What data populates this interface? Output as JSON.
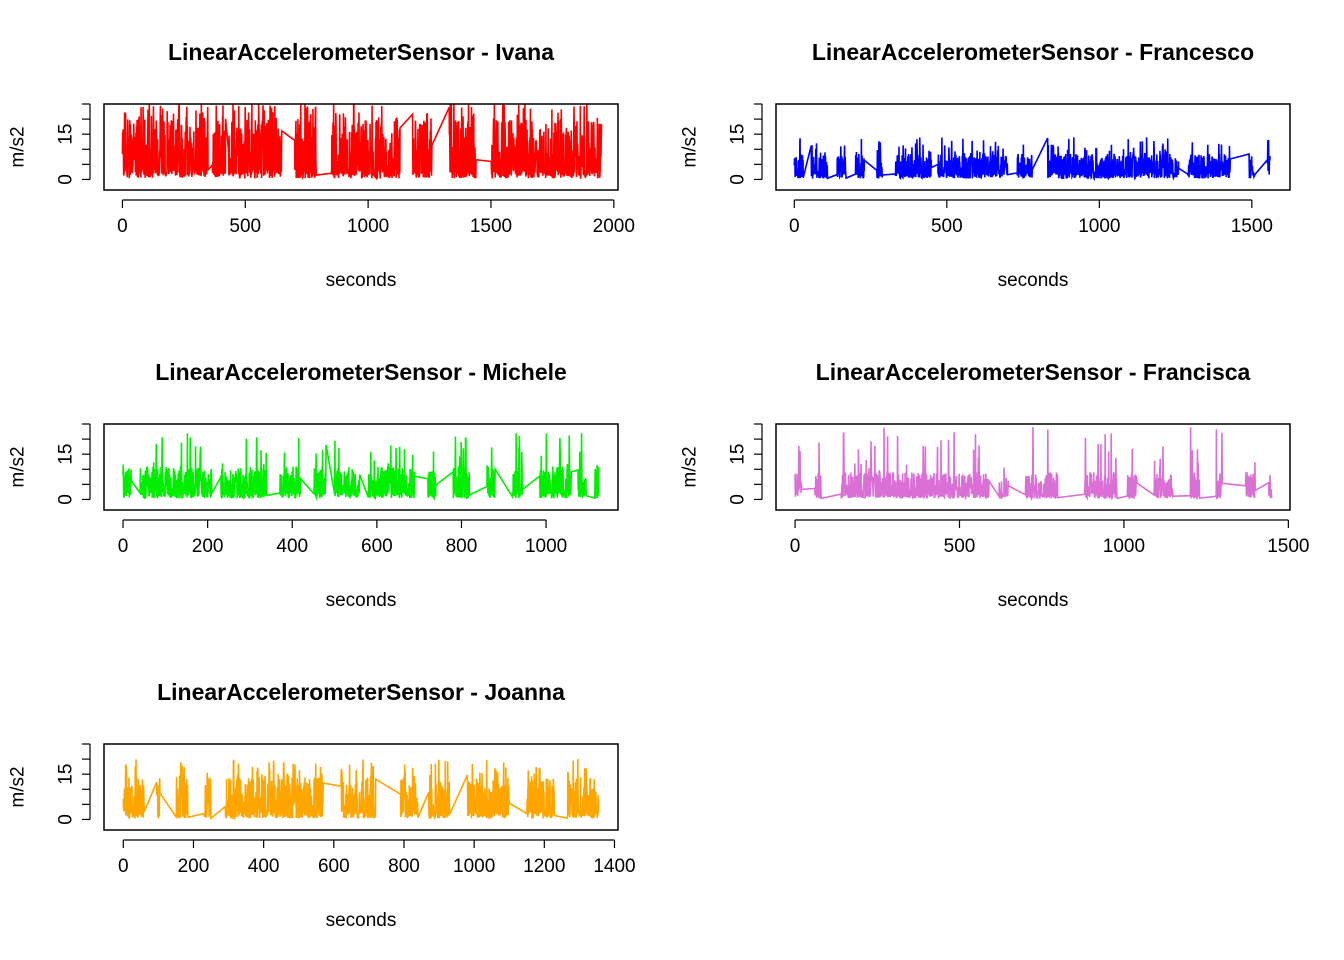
{
  "chart_data": [
    {
      "type": "line",
      "title": "LinearAccelerometerSensor - Ivana",
      "xlabel": "seconds",
      "ylabel": "m/s2",
      "color": "#ff0000",
      "x_ticks": [
        0,
        500,
        1000,
        1500,
        2000
      ],
      "x_tick_labels": [
        "0",
        "500",
        "1000",
        "1500",
        "2000"
      ],
      "y_ticks": [
        0,
        5,
        10,
        15,
        20,
        25
      ],
      "y_tick_labels": [
        "0",
        "",
        "",
        "15",
        "",
        ""
      ],
      "xlim": [
        -75,
        2017
      ],
      "ylim": [
        -3.5,
        25
      ],
      "x_range": [
        0,
        1950
      ],
      "y_base": 4,
      "y_peak": 20,
      "y_max": 26,
      "gaps": [
        [
          350,
          365
        ],
        [
          420,
          430
        ],
        [
          650,
          700
        ],
        [
          790,
          850
        ],
        [
          1130,
          1180
        ],
        [
          1260,
          1330
        ],
        [
          1440,
          1500
        ]
      ],
      "seed": 11
    },
    {
      "type": "line",
      "title": "LinearAccelerometerSensor - Francesco",
      "xlabel": "seconds",
      "ylabel": "m/s2",
      "color": "#0000ff",
      "x_ticks": [
        0,
        500,
        1000,
        1500
      ],
      "x_tick_labels": [
        "0",
        "500",
        "1000",
        "1500"
      ],
      "y_ticks": [
        0,
        5,
        10,
        15,
        20,
        25
      ],
      "y_tick_labels": [
        "0",
        "",
        "",
        "15",
        "",
        ""
      ],
      "xlim": [
        -60,
        1625
      ],
      "ylim": [
        -3.5,
        25
      ],
      "x_range": [
        0,
        1560
      ],
      "y_base": 2.5,
      "y_peak": 8.5,
      "y_max": 14,
      "gaps": [
        [
          30,
          55
        ],
        [
          110,
          140
        ],
        [
          170,
          200
        ],
        [
          230,
          270
        ],
        [
          290,
          330
        ],
        [
          450,
          470
        ],
        [
          700,
          730
        ],
        [
          780,
          830
        ],
        [
          1260,
          1290
        ],
        [
          1430,
          1490
        ],
        [
          1510,
          1550
        ]
      ],
      "seed": 23
    },
    {
      "type": "line",
      "title": "LinearAccelerometerSensor - Michele",
      "xlabel": "seconds",
      "ylabel": "m/s2",
      "color": "#00ee00",
      "x_ticks": [
        0,
        200,
        400,
        600,
        800,
        1000
      ],
      "x_tick_labels": [
        "0",
        "200",
        "400",
        "600",
        "800",
        "1000"
      ],
      "y_ticks": [
        0,
        5,
        10,
        15,
        20,
        25
      ],
      "y_tick_labels": [
        "0",
        "",
        "",
        "15",
        "",
        ""
      ],
      "xlim": [
        -45,
        1170
      ],
      "ylim": [
        -3.5,
        25
      ],
      "x_range": [
        0,
        1125
      ],
      "y_base": 3,
      "y_peak": 11,
      "y_max": 22,
      "gaps": [
        [
          20,
          40
        ],
        [
          210,
          230
        ],
        [
          340,
          370
        ],
        [
          420,
          450
        ],
        [
          480,
          500
        ],
        [
          560,
          580
        ],
        [
          690,
          720
        ],
        [
          740,
          780
        ],
        [
          820,
          860
        ],
        [
          880,
          920
        ],
        [
          945,
          985
        ],
        [
          1060,
          1075
        ],
        [
          1095,
          1115
        ]
      ],
      "seed": 37
    },
    {
      "type": "line",
      "title": "LinearAccelerometerSensor - Francisca",
      "xlabel": "seconds",
      "ylabel": "m/s2",
      "color": "#da70d6",
      "x_ticks": [
        0,
        500,
        1000,
        1500
      ],
      "x_tick_labels": [
        "0",
        "500",
        "1000",
        "1500"
      ],
      "y_ticks": [
        0,
        5,
        10,
        15,
        20,
        25
      ],
      "y_tick_labels": [
        "0",
        "",
        "",
        "15",
        "",
        ""
      ],
      "xlim": [
        -58,
        1505
      ],
      "ylim": [
        -3.5,
        25
      ],
      "x_range": [
        0,
        1450
      ],
      "y_base": 2,
      "y_peak": 9,
      "y_max": 24,
      "gaps": [
        [
          20,
          60
        ],
        [
          80,
          140
        ],
        [
          590,
          620
        ],
        [
          650,
          700
        ],
        [
          800,
          880
        ],
        [
          980,
          1010
        ],
        [
          1040,
          1090
        ],
        [
          1150,
          1200
        ],
        [
          1230,
          1280
        ],
        [
          1300,
          1370
        ],
        [
          1400,
          1440
        ]
      ],
      "seed": 51
    },
    {
      "type": "line",
      "title": "LinearAccelerometerSensor - Joanna",
      "xlabel": "seconds",
      "ylabel": "m/s2",
      "color": "#ffa500",
      "x_ticks": [
        0,
        200,
        400,
        600,
        800,
        1000,
        1200,
        1400
      ],
      "x_tick_labels": [
        "0",
        "200",
        "400",
        "600",
        "800",
        "1000",
        "1200",
        "1400"
      ],
      "y_ticks": [
        0,
        5,
        10,
        15,
        20,
        25
      ],
      "y_tick_labels": [
        "0",
        "",
        "",
        "15",
        "",
        ""
      ],
      "xlim": [
        -55,
        1410
      ],
      "ylim": [
        -3.5,
        25
      ],
      "x_range": [
        0,
        1355
      ],
      "y_base": 3,
      "y_peak": 14,
      "y_max": 20,
      "gaps": [
        [
          60,
          95
        ],
        [
          105,
          150
        ],
        [
          185,
          230
        ],
        [
          250,
          290
        ],
        [
          570,
          620
        ],
        [
          720,
          790
        ],
        [
          840,
          870
        ],
        [
          930,
          980
        ],
        [
          1100,
          1150
        ],
        [
          1230,
          1265
        ]
      ],
      "seed": 67
    }
  ]
}
